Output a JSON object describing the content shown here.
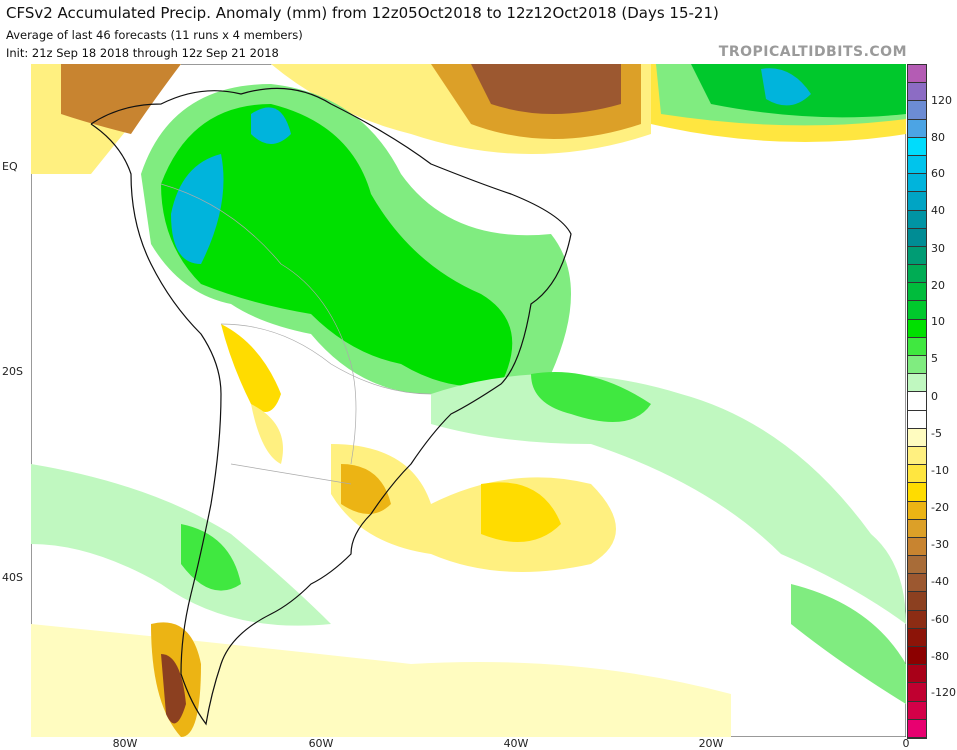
{
  "header": {
    "title": "CFSv2 Accumulated Precip. Anomaly (mm) from 12z05Oct2018 to 12z12Oct2018 (Days 15-21)",
    "subtitle1": "Average of last 46 forecasts (11 runs x 4 members)",
    "subtitle2": "Init: 21z Sep 18 2018 through 12z Sep 21 2018",
    "brand": "TROPICALTIDBITS.COM"
  },
  "axes": {
    "lat_labels": [
      "EQ",
      "20S",
      "40S"
    ],
    "lon_labels": [
      "80W",
      "60W",
      "40W",
      "20W",
      "0"
    ]
  },
  "colorbar": {
    "labels": [
      "120",
      "80",
      "60",
      "40",
      "30",
      "20",
      "10",
      "5",
      "0",
      "-5",
      "-10",
      "-20",
      "-30",
      "-40",
      "-60",
      "-80",
      "-120"
    ],
    "colors": [
      "#b45cb4",
      "#8c6cc4",
      "#6c8cd4",
      "#4ca4e4",
      "#00dcfc",
      "#00c4ec",
      "#00b4dc",
      "#00a4c4",
      "#0094a4",
      "#008c94",
      "#009c74",
      "#00ac54",
      "#00bc3c",
      "#00c82c",
      "#00e000",
      "#40e840",
      "#80ec80",
      "#c0f8c0",
      "#ffffff",
      "#ffffff",
      "#fffcc0",
      "#fff080",
      "#ffe640",
      "#ffdc00",
      "#ecb414",
      "#dca028",
      "#c88430",
      "#a86c38",
      "#9c5830",
      "#8c4020",
      "#8c2c14",
      "#8c1408",
      "#8c0000",
      "#a80018",
      "#c00030",
      "#d40048",
      "#e80070"
    ]
  }
}
